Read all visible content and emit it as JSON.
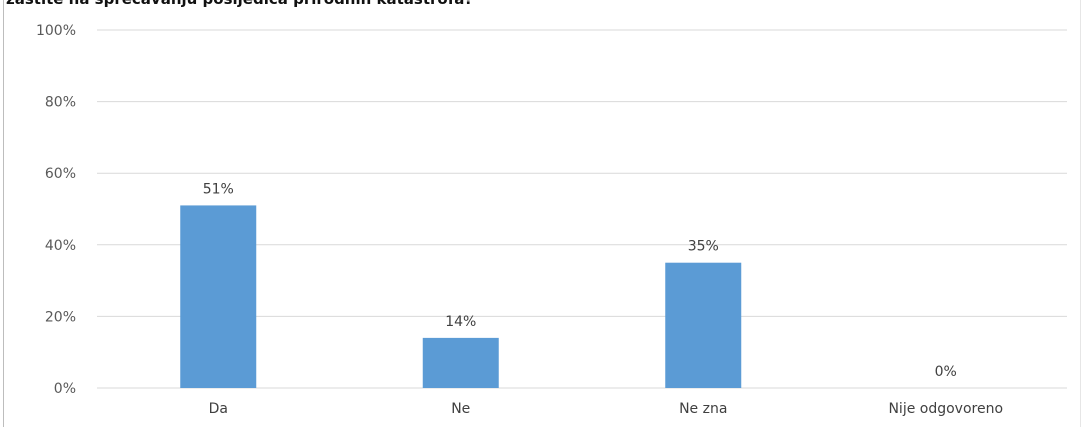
{
  "chart_data": {
    "type": "bar",
    "title": "zaštite na sprečavanju posljedica prirodnih katastrofa?",
    "categories": [
      "Da",
      "Ne",
      "Ne zna",
      "Nije odgovoreno"
    ],
    "values": [
      51,
      14,
      35,
      0
    ],
    "data_labels": [
      "51%",
      "14%",
      "35%",
      "0%"
    ],
    "y_ticks": [
      "0%",
      "20%",
      "40%",
      "60%",
      "80%",
      "100%"
    ],
    "ylim": [
      0,
      100
    ],
    "xlabel": "",
    "ylabel": "",
    "grid": true,
    "legend": "none",
    "bar_color": "#5b9bd5",
    "grid_color": "#d9d9d9",
    "text_color": "#595959"
  }
}
